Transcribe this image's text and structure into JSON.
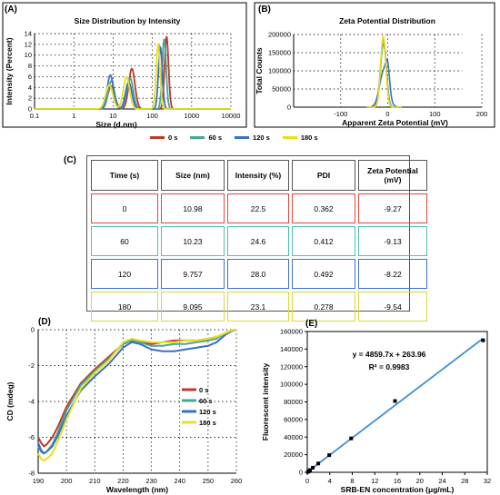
{
  "panels": {
    "a_label": "(A)",
    "b_label": "(B)",
    "c_label": "(C)",
    "d_label": "(D)",
    "e_label": "(E)"
  },
  "legend_common": {
    "entries": [
      {
        "label": "0 s",
        "color": "#c0392b"
      },
      {
        "label": "60 s",
        "color": "#4aa596"
      },
      {
        "label": "120 s",
        "color": "#3b6fc4"
      },
      {
        "label": "180 s",
        "color": "#e6e020"
      }
    ]
  },
  "chart_data": [
    {
      "id": "A",
      "type": "line",
      "title": "Size Distribution by Intensity",
      "xlabel": "Size (d.nm)",
      "ylabel": "Intensity (Percent)",
      "xscale": "log",
      "xlim": [
        0.1,
        10000
      ],
      "ylim": [
        0,
        14
      ],
      "xticks": [
        "0.1",
        "1",
        "10",
        "100",
        "1000",
        "10000"
      ],
      "xtick_values": [
        0.1,
        1,
        10,
        100,
        1000,
        10000
      ],
      "yticks": [
        0,
        2,
        4,
        6,
        8,
        10,
        12,
        14
      ],
      "grid": true,
      "series": [
        {
          "name": "0 s",
          "color": "#c0392b",
          "peaks": [
            {
              "center": 9,
              "height": 4.3,
              "width": 0.09
            },
            {
              "center": 30,
              "height": 7.5,
              "width": 0.08
            },
            {
              "center": 230,
              "height": 13.5,
              "width": 0.05
            }
          ]
        },
        {
          "name": "60 s",
          "color": "#4aa596",
          "peaks": [
            {
              "center": 9,
              "height": 5.2,
              "width": 0.08
            },
            {
              "center": 27,
              "height": 5.8,
              "width": 0.08
            },
            {
              "center": 200,
              "height": 13.0,
              "width": 0.05
            }
          ]
        },
        {
          "name": "120 s",
          "color": "#3b6fc4",
          "peaks": [
            {
              "center": 8.5,
              "height": 6.3,
              "width": 0.08
            },
            {
              "center": 25,
              "height": 5.0,
              "width": 0.08
            },
            {
              "center": 160,
              "height": 11.5,
              "width": 0.05
            }
          ]
        },
        {
          "name": "180 s",
          "color": "#e6e020",
          "peaks": [
            {
              "center": 8,
              "height": 4.5,
              "width": 0.09
            },
            {
              "center": 22,
              "height": 6.0,
              "width": 0.08
            },
            {
              "center": 140,
              "height": 12.0,
              "width": 0.05
            }
          ]
        }
      ]
    },
    {
      "id": "B",
      "type": "line",
      "title": "Zeta Potential Distribution",
      "xlabel": "Apparent Zeta Potential (mV)",
      "ylabel": "Total Counts",
      "xlim": [
        -200,
        200
      ],
      "ylim": [
        0,
        200000
      ],
      "xticks": [
        -100,
        0,
        100,
        200
      ],
      "yticks": [
        "0",
        "50000",
        "100000",
        "150000",
        "200000"
      ],
      "ytick_values": [
        0,
        50000,
        100000,
        150000,
        200000
      ],
      "grid": true,
      "series": [
        {
          "name": "0 s",
          "color": "#c0392b",
          "peaks": [
            {
              "center": -9.27,
              "height": 190000,
              "width": 6
            }
          ]
        },
        {
          "name": "60 s",
          "color": "#4aa596",
          "peaks": [
            {
              "center": -9.13,
              "height": 175000,
              "width": 6
            }
          ]
        },
        {
          "name": "120 s",
          "color": "#3b6fc4",
          "peaks": [
            {
              "center": -8.22,
              "height": 100000,
              "width": 9
            },
            {
              "center": 0,
              "height": 60000,
              "width": 4
            }
          ]
        },
        {
          "name": "180 s",
          "color": "#e6e020",
          "peaks": [
            {
              "center": -9.54,
              "height": 195000,
              "width": 5.5
            }
          ]
        }
      ]
    },
    {
      "id": "C",
      "type": "table",
      "headers": [
        "Time (s)",
        "Size (nm)",
        "Intensity (%)",
        "PDI",
        "Zeta Potential (mV)"
      ],
      "rows": [
        {
          "color": "#e8453c",
          "cells": [
            "0",
            "10.98",
            "22.5",
            "0.362",
            "-9.27"
          ]
        },
        {
          "color": "#4fc0b0",
          "cells": [
            "60",
            "10.23",
            "24.6",
            "0.412",
            "-9.13"
          ]
        },
        {
          "color": "#3f6fd1",
          "cells": [
            "120",
            "9.757",
            "28.0",
            "0.492",
            "-8.22"
          ]
        },
        {
          "color": "#d8d83a",
          "cells": [
            "180",
            "9.095",
            "23.1",
            "0.278",
            "-9.54"
          ]
        }
      ]
    },
    {
      "id": "D",
      "type": "line",
      "xlabel": "Wavelength (nm)",
      "ylabel": "CD (mdeg)",
      "xlim": [
        190,
        260
      ],
      "ylim": [
        -8,
        0
      ],
      "xticks": [
        190,
        200,
        210,
        220,
        230,
        240,
        250,
        260
      ],
      "yticks": [
        0,
        -2,
        -4,
        -6,
        -8
      ],
      "grid": true,
      "legend": "right",
      "series": [
        {
          "name": "0 s",
          "color": "#c0392b",
          "x": [
            190,
            191,
            192,
            193,
            195,
            197,
            200,
            205,
            210,
            215,
            220,
            223,
            226,
            230,
            234,
            238,
            242,
            246,
            250,
            253,
            256,
            258,
            260
          ],
          "y": [
            -6.0,
            -6.3,
            -6.5,
            -6.4,
            -6.0,
            -5.4,
            -4.3,
            -3.0,
            -2.2,
            -1.5,
            -0.8,
            -0.6,
            -0.7,
            -0.8,
            -0.7,
            -0.6,
            -0.6,
            -0.6,
            -0.5,
            -0.4,
            -0.2,
            -0.05,
            0
          ]
        },
        {
          "name": "60 s",
          "color": "#4aa596",
          "x": [
            190,
            191,
            192,
            193,
            195,
            197,
            200,
            205,
            210,
            215,
            220,
            223,
            226,
            230,
            234,
            238,
            242,
            246,
            250,
            253,
            256,
            258,
            260
          ],
          "y": [
            -6.5,
            -6.8,
            -6.9,
            -6.8,
            -6.4,
            -5.7,
            -4.5,
            -3.1,
            -2.3,
            -1.6,
            -0.8,
            -0.6,
            -0.7,
            -0.9,
            -0.9,
            -0.8,
            -0.8,
            -0.7,
            -0.6,
            -0.5,
            -0.2,
            -0.05,
            0
          ]
        },
        {
          "name": "120 s",
          "color": "#3b6fc4",
          "x": [
            190,
            191,
            192,
            193,
            195,
            197,
            200,
            205,
            210,
            215,
            220,
            223,
            226,
            230,
            234,
            238,
            242,
            246,
            250,
            253,
            256,
            258,
            260
          ],
          "y": [
            -6.3,
            -6.7,
            -6.9,
            -6.8,
            -6.5,
            -5.9,
            -4.8,
            -3.4,
            -2.6,
            -1.9,
            -1.0,
            -0.7,
            -0.8,
            -1.1,
            -1.2,
            -1.2,
            -1.1,
            -1.0,
            -0.9,
            -0.7,
            -0.3,
            -0.1,
            0
          ]
        },
        {
          "name": "180 s",
          "color": "#e6e020",
          "x": [
            190,
            191,
            192,
            193,
            195,
            197,
            200,
            205,
            210,
            215,
            220,
            223,
            226,
            230,
            234,
            238,
            242,
            246,
            250,
            253,
            256,
            258,
            260
          ],
          "y": [
            -6.9,
            -7.2,
            -7.3,
            -7.2,
            -6.9,
            -6.2,
            -5.0,
            -3.3,
            -2.4,
            -1.7,
            -0.7,
            -0.5,
            -0.6,
            -0.7,
            -0.7,
            -0.7,
            -0.6,
            -0.6,
            -0.5,
            -0.4,
            -0.2,
            -0.05,
            0
          ]
        }
      ]
    },
    {
      "id": "E",
      "type": "scatter",
      "xlabel": "SRB-EN concentration (μg/mL)",
      "ylabel": "Fluorescent intensity",
      "xlim": [
        0,
        32
      ],
      "ylim": [
        0,
        160000
      ],
      "xticks": [
        0,
        4,
        8,
        12,
        16,
        20,
        24,
        28,
        32
      ],
      "yticks": [
        "0",
        "20000",
        "40000",
        "60000",
        "80000",
        "100000",
        "120000",
        "140000",
        "160000"
      ],
      "ytick_values": [
        0,
        20000,
        40000,
        60000,
        80000,
        100000,
        120000,
        140000,
        160000
      ],
      "equation": "y = 4859.7x + 263.96",
      "r_squared": "R² = 0.9983",
      "fit": {
        "slope": 4859.7,
        "intercept": 263.96,
        "color": "#3d8fd6"
      },
      "points": {
        "x": [
          0.12,
          0.24,
          0.49,
          0.98,
          1.95,
          3.9,
          7.8,
          15.6,
          31.25
        ],
        "y": [
          500,
          1300,
          2500,
          5200,
          10000,
          19500,
          38500,
          81000,
          150000
        ]
      }
    }
  ]
}
